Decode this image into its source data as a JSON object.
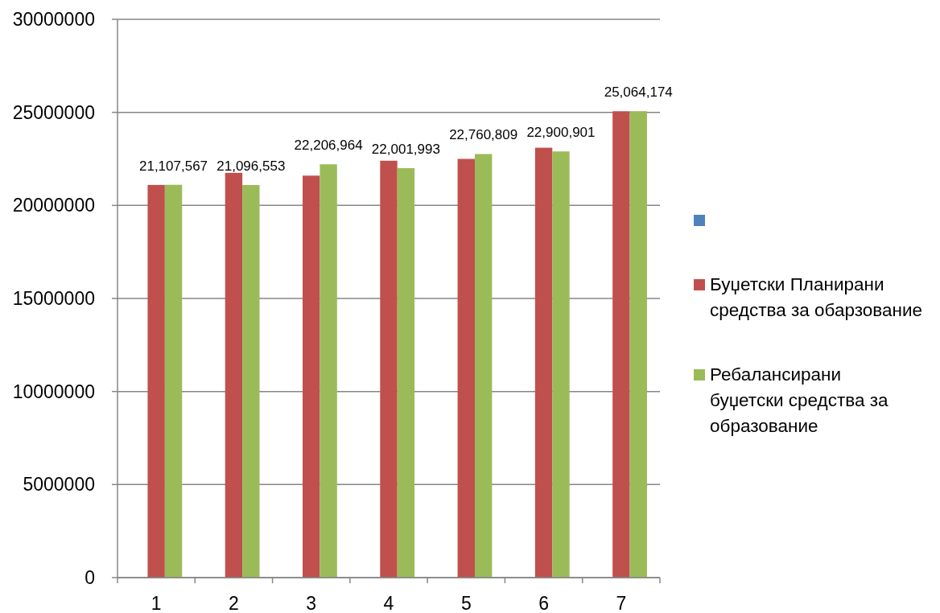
{
  "chart_data": {
    "type": "bar",
    "categories": [
      "1",
      "2",
      "3",
      "4",
      "5",
      "6",
      "7"
    ],
    "series": [
      {
        "color": "#4f81bd",
        "values": [
          null,
          null,
          null,
          null,
          null,
          null,
          null
        ]
      },
      {
        "name": "Буџетски Планирани средства за обарзование",
        "color": "#c0504d",
        "values": [
          21100000,
          21750000,
          21600000,
          22400000,
          22500000,
          23100000,
          25060000
        ]
      },
      {
        "name": "Ребалансирани\nбуџетски средства за образование",
        "color": "#9bbb59",
        "values": [
          21107567,
          21096553,
          22206964,
          22001993,
          22760809,
          22900901,
          25064174
        ],
        "value_labels": [
          "21,107,567",
          "21,096,553",
          "22,206,964",
          "22,001,993",
          "22,760,809",
          "22,900,901",
          "25,064,174"
        ]
      }
    ],
    "ylim": [
      0,
      30000000
    ],
    "yticks": [
      0,
      5000000,
      10000000,
      15000000,
      20000000,
      25000000,
      30000000
    ],
    "grid": "y",
    "legend": "right"
  }
}
